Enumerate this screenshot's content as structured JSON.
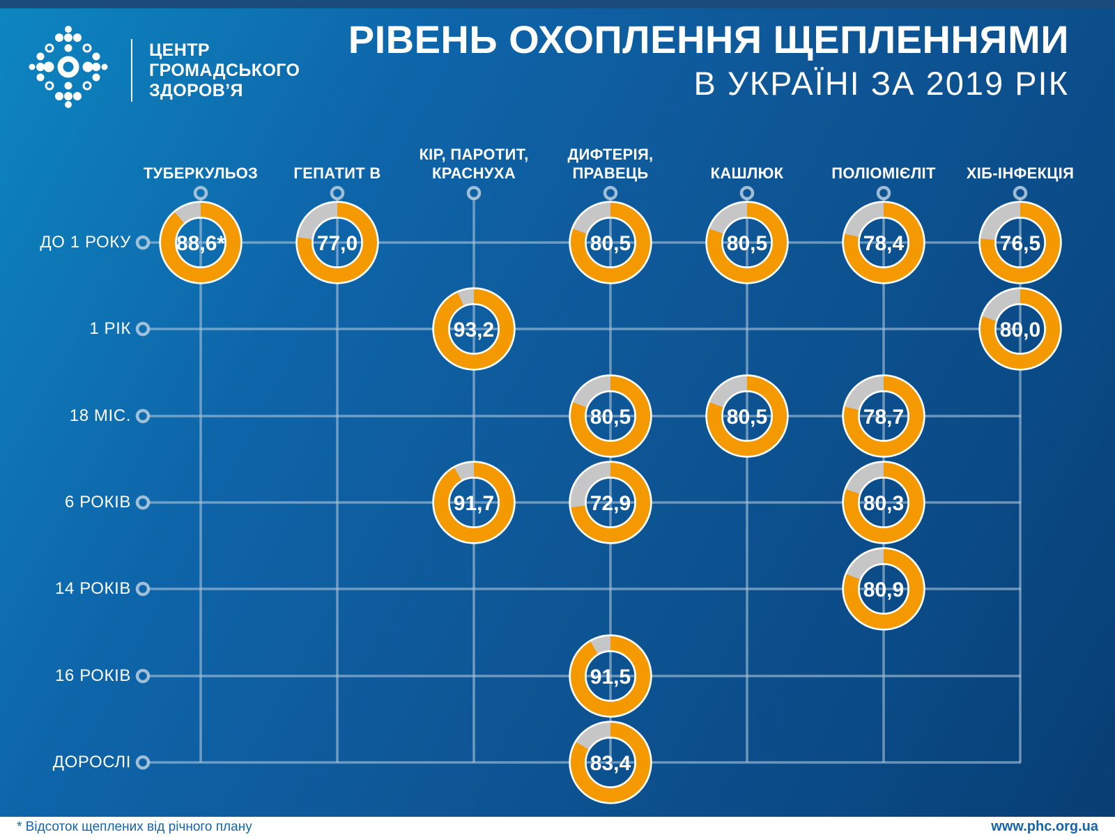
{
  "header": {
    "logo_lines": [
      "ЦЕНТР",
      "ГРОМАДСЬКОГО",
      "ЗДОРОВ’Я"
    ],
    "title": "РІВЕНЬ ОХОПЛЕННЯ ЩЕПЛЕННЯМИ",
    "subtitle": "В УКРАЇНІ ЗА 2019 РІК"
  },
  "footer": {
    "note": "* Відсоток щеплених від річного плану",
    "website": "www.phc.org.ua"
  },
  "chart_data": {
    "type": "pie",
    "variant": "donut-matrix",
    "title": "РІВЕНЬ ОХОПЛЕННЯ ЩЕПЛЕННЯМИ В УКРАЇНІ ЗА 2019 РІК",
    "unit": "%",
    "value_range": [
      0,
      100
    ],
    "colors": {
      "filled": "#f49a00",
      "remainder": "#c6c6c6"
    },
    "columns": [
      {
        "lines": [
          "ТУБЕРКУЛЬОЗ"
        ]
      },
      {
        "lines": [
          "ГЕПАТИТ В"
        ]
      },
      {
        "lines": [
          "КІР, ПАРОТИТ,",
          "КРАСНУХА"
        ]
      },
      {
        "lines": [
          "ДИФТЕРІЯ,",
          "ПРАВЕЦЬ"
        ]
      },
      {
        "lines": [
          "КАШЛЮК"
        ]
      },
      {
        "lines": [
          "ПОЛІОМІЄЛІТ"
        ]
      },
      {
        "lines": [
          "ХІБ-ІНФЕКЦІЯ"
        ]
      }
    ],
    "rows": [
      "ДО 1 РОКУ",
      "1 РІК",
      "18 МІС.",
      "6 РОКІВ",
      "14 РОКІВ",
      "16 РОКІВ",
      "ДОРОСЛІ"
    ],
    "cells": [
      {
        "row": 0,
        "col": 0,
        "value": 88.6,
        "display": "88,6*"
      },
      {
        "row": 0,
        "col": 1,
        "value": 77.0,
        "display": "77,0"
      },
      {
        "row": 0,
        "col": 3,
        "value": 80.5,
        "display": "80,5"
      },
      {
        "row": 0,
        "col": 4,
        "value": 80.5,
        "display": "80,5"
      },
      {
        "row": 0,
        "col": 5,
        "value": 78.4,
        "display": "78,4"
      },
      {
        "row": 0,
        "col": 6,
        "value": 76.5,
        "display": "76,5"
      },
      {
        "row": 1,
        "col": 2,
        "value": 93.2,
        "display": "93,2"
      },
      {
        "row": 1,
        "col": 6,
        "value": 80.0,
        "display": "80,0"
      },
      {
        "row": 2,
        "col": 3,
        "value": 80.5,
        "display": "80,5"
      },
      {
        "row": 2,
        "col": 4,
        "value": 80.5,
        "display": "80,5"
      },
      {
        "row": 2,
        "col": 5,
        "value": 78.7,
        "display": "78,7"
      },
      {
        "row": 3,
        "col": 2,
        "value": 91.7,
        "display": "91,7"
      },
      {
        "row": 3,
        "col": 3,
        "value": 72.9,
        "display": "72,9"
      },
      {
        "row": 3,
        "col": 5,
        "value": 80.3,
        "display": "80,3"
      },
      {
        "row": 4,
        "col": 5,
        "value": 80.9,
        "display": "80,9"
      },
      {
        "row": 5,
        "col": 3,
        "value": 91.5,
        "display": "91,5"
      },
      {
        "row": 6,
        "col": 3,
        "value": 83.4,
        "display": "83,4"
      }
    ]
  }
}
